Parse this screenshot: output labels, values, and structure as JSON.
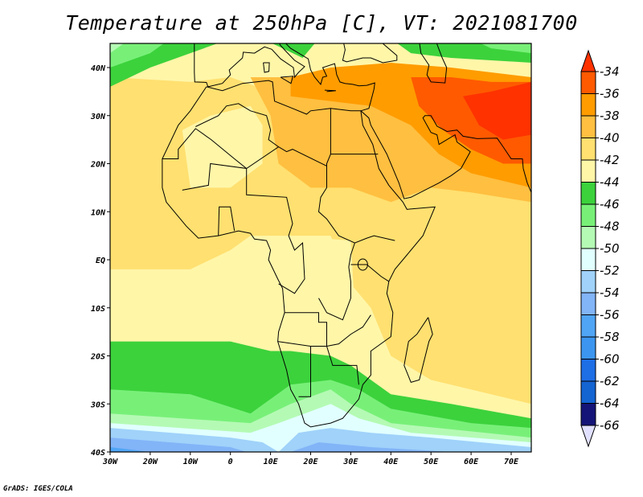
{
  "title": "Temperature at 250hPa [C], VT: 2021081700",
  "credit": "GrADS: IGES/COLA",
  "chart_data": {
    "type": "heatmap",
    "title": "Temperature at 250hPa [C], VT: 2021081700",
    "variable": "Temperature at 250hPa",
    "units": "C",
    "valid_time": "2021081700",
    "lon_range": [
      -30,
      75
    ],
    "lat_range": [
      -40,
      45
    ],
    "x_ticks": [
      "30W",
      "20W",
      "10W",
      "0",
      "10E",
      "20E",
      "30E",
      "40E",
      "50E",
      "60E",
      "70E"
    ],
    "x_tick_values": [
      -30,
      -20,
      -10,
      0,
      10,
      20,
      30,
      40,
      50,
      60,
      70
    ],
    "y_ticks": [
      "40N",
      "30N",
      "20N",
      "10N",
      "EQ",
      "10S",
      "20S",
      "30S",
      "40S"
    ],
    "y_tick_values": [
      40,
      30,
      20,
      10,
      0,
      -10,
      -20,
      -30,
      -40
    ],
    "legend_placement": "right",
    "legend": {
      "labels": [
        "-34",
        "-36",
        "-38",
        "-40",
        "-42",
        "-44",
        "-46",
        "-48",
        "-50",
        "-52",
        "-54",
        "-56",
        "-58",
        "-60",
        "-62",
        "-64",
        "-66"
      ],
      "levels": [
        -34,
        -36,
        -38,
        -40,
        -42,
        -44,
        -46,
        -48,
        -50,
        -52,
        -54,
        -56,
        -58,
        -60,
        -62,
        -64,
        -66
      ],
      "above_color": "#ff3200",
      "below_color": "#e1e1ff",
      "colors": [
        "#ff5a00",
        "#ff9c00",
        "#ffbf40",
        "#ffe070",
        "#fff6a8",
        "#3cd23c",
        "#78f078",
        "#b4fab4",
        "#e1ffff",
        "#a0d2fa",
        "#82b4f8",
        "#50a5f5",
        "#3c96f0",
        "#1e6ee6",
        "#1464d2",
        "#141478"
      ]
    },
    "field_summary": {
      "max_region": "Iran/Pakistan, above -34",
      "min_region": "Southern Ocean near 40S, about -58"
    }
  }
}
